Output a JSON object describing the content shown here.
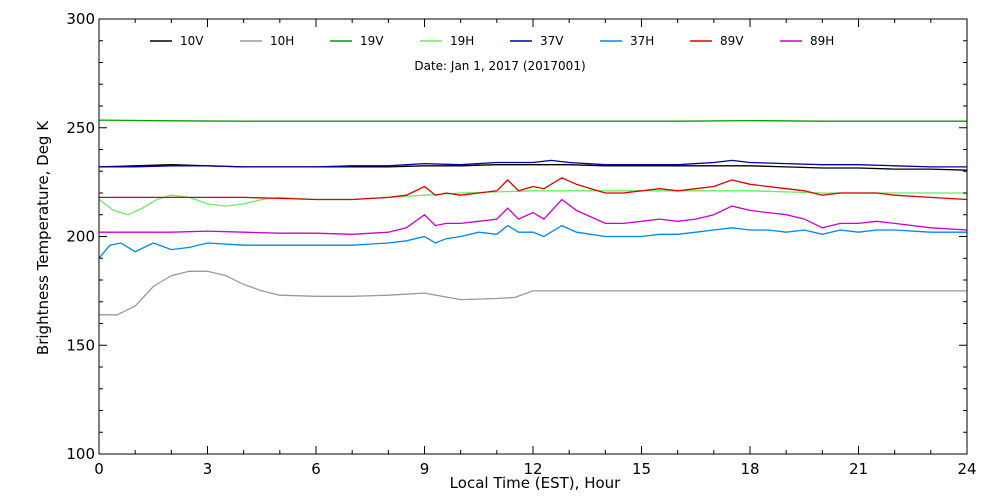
{
  "chart_data": {
    "type": "line",
    "title": "",
    "subtitle": "Date: Jan  1, 2017 (2017001)",
    "xlabel": "Local Time (EST), Hour",
    "ylabel": "Brightness Temperature, Deg K",
    "xlim": [
      0,
      24
    ],
    "ylim": [
      100,
      300
    ],
    "xticks": [
      0,
      3,
      6,
      9,
      12,
      15,
      18,
      21,
      24
    ],
    "yticks": [
      100,
      150,
      200,
      250,
      300
    ],
    "grid": false,
    "legend_position": "top",
    "series": [
      {
        "name": "10V",
        "color": "#000000",
        "x": [
          0,
          1,
          2,
          3,
          4,
          5,
          6,
          7,
          8,
          9,
          10,
          11,
          12,
          13,
          14,
          15,
          16,
          17,
          18,
          19,
          20,
          21,
          22,
          23,
          24
        ],
        "y": [
          232,
          232.5,
          233,
          232.5,
          232,
          232,
          232,
          232,
          232,
          232.5,
          232.5,
          233,
          233,
          233,
          232.5,
          232.5,
          232.5,
          232.5,
          232.5,
          232,
          231.5,
          231.5,
          231,
          231,
          230.5
        ]
      },
      {
        "name": "10H",
        "color": "#999999",
        "x": [
          0,
          0.5,
          1,
          1.5,
          2,
          2.5,
          3,
          3.5,
          4,
          4.5,
          5,
          6,
          7,
          8,
          9,
          10,
          11,
          11.5,
          12,
          13,
          14,
          15,
          16,
          17,
          18,
          19,
          20,
          21,
          22,
          23,
          24
        ],
        "y": [
          164,
          164,
          168,
          177,
          182,
          184,
          184,
          182,
          178,
          175,
          173,
          172.5,
          172.5,
          173,
          174,
          171,
          171.5,
          172,
          175,
          175,
          175,
          175,
          175,
          175,
          175,
          175,
          175,
          175,
          175,
          175,
          175
        ]
      },
      {
        "name": "19V",
        "color": "#00a000",
        "x": [
          0,
          2,
          4,
          6,
          8,
          10,
          12,
          14,
          16,
          18,
          20,
          22,
          24
        ],
        "y": [
          253.5,
          253.2,
          253,
          253,
          253,
          253,
          253,
          253,
          253,
          253.3,
          253,
          253,
          253
        ]
      },
      {
        "name": "19H",
        "color": "#66ee66",
        "x": [
          0,
          0.4,
          0.8,
          1.2,
          1.6,
          2,
          2.5,
          3,
          3.5,
          4,
          4.5,
          5,
          6,
          7,
          8,
          9,
          10,
          11,
          12,
          13,
          14,
          15,
          16,
          17,
          18,
          19,
          20,
          21,
          22,
          23,
          24
        ],
        "y": [
          217,
          212,
          210,
          213,
          217,
          219,
          218,
          215,
          214,
          215,
          217,
          218,
          217,
          217,
          218,
          219,
          220,
          220.5,
          221,
          221,
          221,
          221,
          221,
          221,
          221,
          220.5,
          220,
          220,
          220,
          220,
          220
        ]
      },
      {
        "name": "37V",
        "color": "#0000a0",
        "x": [
          0,
          1,
          2,
          3,
          4,
          5,
          6,
          7,
          8,
          9,
          10,
          11,
          12,
          12.5,
          13,
          14,
          15,
          16,
          17,
          17.5,
          18,
          19,
          20,
          21,
          22,
          23,
          24
        ],
        "y": [
          232,
          232,
          232.5,
          232.5,
          232,
          232,
          232,
          232.5,
          232.5,
          233.5,
          233,
          234,
          234,
          235,
          234,
          233,
          233,
          233,
          234,
          235,
          234,
          233.5,
          233,
          233,
          232.5,
          232,
          232
        ]
      },
      {
        "name": "37H",
        "color": "#0088ee",
        "x": [
          0,
          0.3,
          0.6,
          1,
          1.5,
          2,
          2.5,
          3,
          4,
          5,
          6,
          7,
          8,
          8.5,
          9,
          9.3,
          9.6,
          10,
          10.5,
          11,
          11.3,
          11.6,
          12,
          12.3,
          12.8,
          13.2,
          13.6,
          14,
          14.5,
          15,
          15.5,
          16,
          16.5,
          17,
          17.5,
          18,
          18.5,
          19,
          19.5,
          20,
          20.5,
          21,
          21.5,
          22,
          23,
          24
        ],
        "y": [
          190,
          196,
          197,
          193,
          197,
          194,
          195,
          197,
          196,
          196,
          196,
          196,
          197,
          198,
          200,
          197,
          199,
          200,
          202,
          201,
          205,
          202,
          202,
          200,
          205,
          202,
          201,
          200,
          200,
          200,
          201,
          201,
          202,
          203,
          204,
          203,
          203,
          202,
          203,
          201,
          203,
          202,
          203,
          203,
          202,
          202
        ]
      },
      {
        "name": "89V",
        "color": "#dd0000",
        "x": [
          0,
          1,
          2,
          3,
          4,
          5,
          6,
          7,
          8,
          8.5,
          9,
          9.3,
          9.6,
          10,
          10.5,
          11,
          11.3,
          11.6,
          12,
          12.3,
          12.8,
          13.2,
          13.6,
          14,
          14.5,
          15,
          15.5,
          16,
          16.5,
          17,
          17.5,
          18,
          18.5,
          19,
          19.5,
          20,
          20.5,
          21,
          21.5,
          22,
          23,
          24
        ],
        "y": [
          218,
          218,
          218,
          218,
          218,
          217.5,
          217,
          217,
          218,
          219,
          223,
          219,
          220,
          219,
          220,
          221,
          226,
          221,
          223,
          222,
          227,
          224,
          222,
          220,
          220,
          221,
          222,
          221,
          222,
          223,
          226,
          224,
          223,
          222,
          221,
          219,
          220,
          220,
          220,
          219,
          218,
          217
        ]
      },
      {
        "name": "89H",
        "color": "#cc00cc",
        "x": [
          0,
          1,
          2,
          3,
          4,
          5,
          6,
          7,
          8,
          8.5,
          9,
          9.3,
          9.6,
          10,
          10.5,
          11,
          11.3,
          11.6,
          12,
          12.3,
          12.8,
          13.2,
          13.6,
          14,
          14.5,
          15,
          15.5,
          16,
          16.5,
          17,
          17.5,
          18,
          18.5,
          19,
          19.5,
          20,
          20.5,
          21,
          21.5,
          22,
          23,
          24
        ],
        "y": [
          202,
          202,
          202,
          202.5,
          202,
          201.5,
          201.5,
          201,
          202,
          204,
          210,
          205,
          206,
          206,
          207,
          208,
          213,
          208,
          211,
          208,
          217,
          212,
          209,
          206,
          206,
          207,
          208,
          207,
          208,
          210,
          214,
          212,
          211,
          210,
          208,
          204,
          206,
          206,
          207,
          206,
          204,
          203
        ]
      }
    ]
  }
}
